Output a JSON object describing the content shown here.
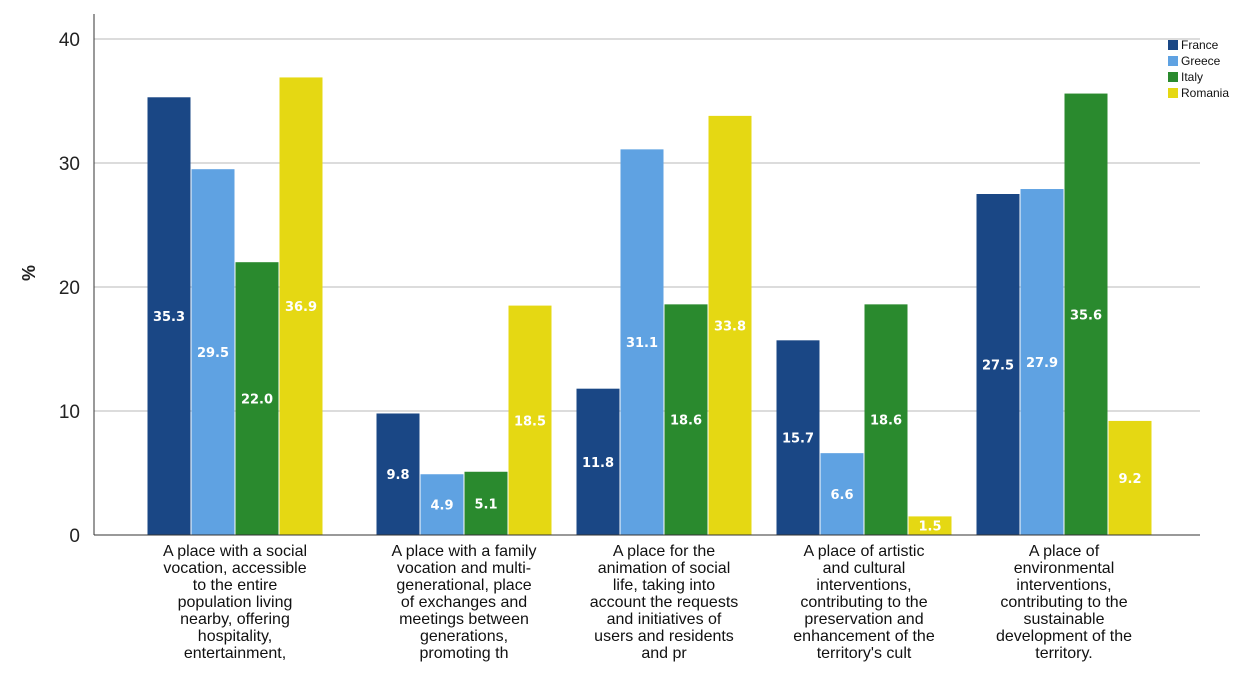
{
  "chart_data": {
    "type": "bar",
    "ylabel": "%",
    "ylim": [
      0,
      40
    ],
    "yticks": [
      0,
      10,
      20,
      30,
      40
    ],
    "grid": true,
    "legend_position": "top-right",
    "categories": [
      "A place with a social vocation, accessible to the entire population living nearby, offering hospitality, entertainment,",
      "A place with a family vocation and multi-generational, place of exchanges and meetings between generations, promoting th",
      "A place for the animation of social life, taking into account the requests and initiatives of users and residents and pr",
      "A place of artistic and cultural interventions, contributing to the preservation and enhancement of the territory's cult",
      "A place of environmental interventions, contributing to the sustainable development of the territory."
    ],
    "category_lines": [
      [
        "A place with a social",
        "vocation, accessible",
        "to the entire",
        "population living",
        "nearby, offering",
        "hospitality,",
        "entertainment,"
      ],
      [
        "A place with a family",
        "vocation and multi-",
        "generational, place",
        "of exchanges and",
        "meetings between",
        "generations,",
        "promoting th"
      ],
      [
        "A place for the",
        "animation of social",
        "life, taking into",
        "account the requests",
        "and initiatives of",
        "users and residents",
        "and pr"
      ],
      [
        "A place of artistic",
        "and cultural",
        "interventions,",
        "contributing to the",
        "preservation and",
        "enhancement of the",
        "territory's cult"
      ],
      [
        "A place of",
        "environmental",
        "interventions,",
        "contributing to the",
        "sustainable",
        "development of the",
        "territory."
      ]
    ],
    "series": [
      {
        "name": "France",
        "color": "#1a4785",
        "values": [
          35.3,
          9.8,
          11.8,
          15.7,
          27.5
        ]
      },
      {
        "name": "Greece",
        "color": "#5fa2e2",
        "values": [
          29.5,
          4.9,
          31.1,
          6.6,
          27.9
        ]
      },
      {
        "name": "Italy",
        "color": "#2a8a2e",
        "values": [
          22.0,
          5.1,
          18.6,
          18.6,
          35.6
        ]
      },
      {
        "name": "Romania",
        "color": "#e5d813",
        "values": [
          36.9,
          18.5,
          33.8,
          1.5,
          9.2
        ]
      }
    ]
  }
}
